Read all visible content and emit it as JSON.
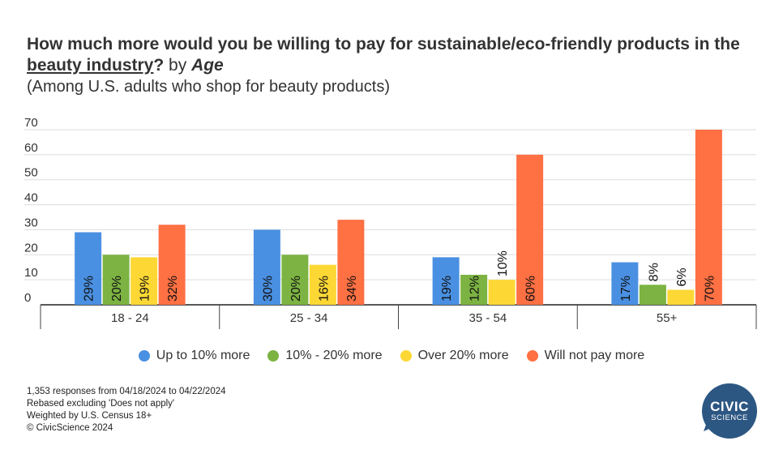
{
  "title": {
    "part1": "How much more would you be willing to pay for sustainable/eco-friendly products in the ",
    "underlined": "beauty industry",
    "part2": "?",
    "by": " by ",
    "by_italic": "Age"
  },
  "subtitle": "(Among U.S. adults who shop for beauty products)",
  "chart_data": {
    "type": "bar",
    "categories": [
      "18 - 24",
      "25 - 34",
      "35 - 54",
      "55+"
    ],
    "series": [
      {
        "name": "Up to 10% more",
        "color": "#4a90e2",
        "values": [
          29,
          30,
          19,
          17
        ]
      },
      {
        "name": "10% - 20% more",
        "color": "#7cb342",
        "values": [
          20,
          20,
          12,
          8
        ]
      },
      {
        "name": "Over 20% more",
        "color": "#fdd835",
        "values": [
          19,
          16,
          10,
          6
        ]
      },
      {
        "name": "Will not pay more",
        "color": "#ff7043",
        "values": [
          32,
          34,
          60,
          70
        ]
      }
    ],
    "ylim": [
      0,
      70
    ],
    "yticks": [
      0,
      10,
      20,
      30,
      40,
      50,
      60,
      70
    ],
    "value_suffix": "%",
    "grid": true,
    "legend_position": "bottom"
  },
  "footnotes": [
    "1,353 responses from 04/18/2024 to 04/22/2024",
    "Rebased excluding 'Does not apply'",
    "Weighted by U.S. Census 18+",
    "© CivicScience 2024"
  ],
  "logo": {
    "line1": "CIVIC",
    "line2": "SCIENCE"
  }
}
